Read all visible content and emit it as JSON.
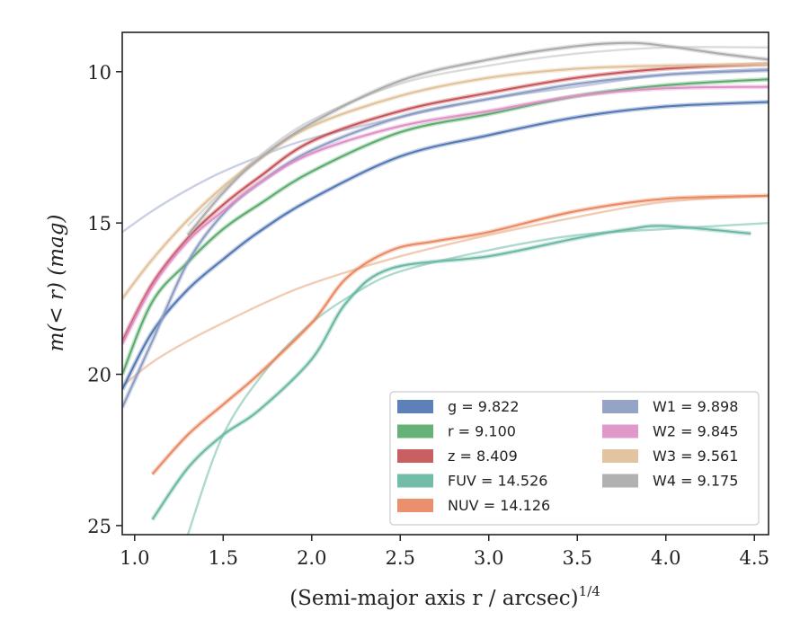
{
  "chart_data": {
    "type": "line",
    "xlabel": "(Semi-major axis r / arcsec)",
    "xlabel_exponent": "1/4",
    "ylabel": "m(< r) (mag)",
    "xlim": [
      0.93,
      4.58
    ],
    "ylim": [
      25.3,
      8.7
    ],
    "y_inverted": true,
    "xticks": [
      "1.0",
      "1.5",
      "2.0",
      "2.5",
      "3.0",
      "3.5",
      "4.0",
      "4.5"
    ],
    "yticks": [
      "10",
      "15",
      "20",
      "25"
    ],
    "legend_position": "lower-right",
    "legend_columns": 2,
    "series": [
      {
        "name": "g",
        "label": "g = 9.822",
        "color": "#4c72b0",
        "x": [
          0.93,
          1.1,
          1.3,
          1.5,
          1.7,
          2.0,
          2.5,
          3.0,
          3.5,
          4.0,
          4.58
        ],
        "y": [
          20.5,
          18.6,
          17.2,
          16.2,
          15.3,
          14.2,
          12.8,
          12.1,
          11.5,
          11.15,
          11.0
        ]
      },
      {
        "name": "r",
        "label": "r = 9.100",
        "color": "#55a868",
        "x": [
          0.93,
          1.1,
          1.3,
          1.5,
          1.7,
          2.0,
          2.5,
          3.0,
          3.5,
          4.0,
          4.58
        ],
        "y": [
          20.0,
          17.6,
          16.3,
          15.2,
          14.4,
          13.3,
          12.0,
          11.4,
          10.8,
          10.45,
          10.25
        ]
      },
      {
        "name": "z",
        "label": "z = 8.409",
        "color": "#c44e52",
        "x": [
          0.93,
          1.1,
          1.3,
          1.5,
          1.7,
          2.0,
          2.5,
          3.0,
          3.5,
          4.0,
          4.58
        ],
        "y": [
          18.9,
          17.0,
          15.5,
          14.4,
          13.5,
          12.3,
          11.3,
          10.7,
          10.2,
          9.9,
          9.75
        ]
      },
      {
        "name": "FUV",
        "label": "FUV = 14.526",
        "color": "#64b5a0",
        "x": [
          1.1,
          1.3,
          1.5,
          1.7,
          2.0,
          2.2,
          2.45,
          3.0,
          3.5,
          3.8,
          4.0,
          4.48
        ],
        "y": [
          24.8,
          23.1,
          22.0,
          21.2,
          19.5,
          17.6,
          16.5,
          16.1,
          15.5,
          15.2,
          15.1,
          15.35
        ]
      },
      {
        "name": "NUV",
        "label": "NUV = 14.126",
        "color": "#e8845c",
        "x": [
          1.1,
          1.3,
          1.5,
          1.7,
          2.0,
          2.2,
          2.45,
          2.7,
          3.0,
          3.5,
          4.0,
          4.58
        ],
        "y": [
          23.3,
          22.0,
          21.0,
          20.0,
          18.3,
          16.8,
          15.9,
          15.6,
          15.3,
          14.6,
          14.2,
          14.1
        ]
      },
      {
        "name": "W1",
        "label": "W1 = 9.898",
        "color": "#8899c0",
        "x": [
          0.93,
          1.1,
          1.3,
          1.5,
          1.7,
          2.0,
          2.5,
          3.0,
          3.5,
          4.0,
          4.58
        ],
        "y": [
          21.1,
          18.9,
          16.3,
          14.7,
          13.7,
          12.6,
          11.5,
          10.9,
          10.4,
          10.1,
          9.95
        ]
      },
      {
        "name": "W2",
        "label": "W2 = 9.845",
        "color": "#dd8cc4",
        "x": [
          0.93,
          1.1,
          1.3,
          1.5,
          1.7,
          2.0,
          2.5,
          3.0,
          3.5,
          4.0,
          4.58
        ],
        "y": [
          19.0,
          17.1,
          15.6,
          14.6,
          13.7,
          12.7,
          11.8,
          11.3,
          10.8,
          10.55,
          10.5
        ]
      },
      {
        "name": "W3",
        "label": "W3 = 9.561",
        "color": "#dfbf96",
        "x": [
          0.93,
          1.1,
          1.3,
          1.5,
          1.7,
          2.0,
          2.5,
          3.0,
          3.5,
          4.0,
          4.58
        ],
        "y": [
          17.5,
          16.2,
          14.9,
          13.8,
          12.9,
          11.8,
          10.8,
          10.2,
          9.9,
          9.8,
          9.75
        ]
      },
      {
        "name": "W4",
        "label": "W4 = 9.175",
        "color": "#a8a8a8",
        "x": [
          1.3,
          1.5,
          1.7,
          2.0,
          2.5,
          3.0,
          3.5,
          3.8,
          4.0,
          4.3,
          4.58
        ],
        "y": [
          15.4,
          14.0,
          12.9,
          11.7,
          10.3,
          9.6,
          9.15,
          9.05,
          9.15,
          9.4,
          9.6
        ]
      }
    ],
    "extra_lines": [
      {
        "color": "#c4cbe0",
        "x": [
          0.93,
          1.1,
          1.3,
          1.5,
          1.75,
          2.0,
          2.5,
          3.0,
          3.5,
          4.0,
          4.58
        ],
        "y": [
          15.3,
          14.6,
          13.9,
          13.3,
          12.7,
          12.2,
          11.5,
          10.9,
          10.5,
          10.1,
          9.9
        ]
      },
      {
        "color": "#d7d7d7",
        "x": [
          1.3,
          1.5,
          1.7,
          2.0,
          2.5,
          3.0,
          3.5,
          4.0,
          4.58
        ],
        "y": [
          15.1,
          13.9,
          12.8,
          11.6,
          10.4,
          9.8,
          9.4,
          9.2,
          9.2
        ]
      },
      {
        "color": "#eec7ad",
        "x": [
          0.93,
          1.1,
          1.3,
          1.5,
          1.75,
          2.0,
          2.5,
          3.0,
          3.5,
          4.0,
          4.58
        ],
        "y": [
          20.4,
          19.6,
          18.9,
          18.3,
          17.6,
          17.0,
          16.1,
          15.4,
          14.8,
          14.3,
          14.1
        ]
      },
      {
        "color": "#a5d6c8",
        "x": [
          1.3,
          1.5,
          1.75,
          2.0,
          2.25,
          2.5,
          3.0,
          3.5,
          4.0,
          4.58
        ],
        "y": [
          25.3,
          22.0,
          19.8,
          18.3,
          17.3,
          16.6,
          15.9,
          15.4,
          15.2,
          15.0
        ]
      }
    ]
  }
}
